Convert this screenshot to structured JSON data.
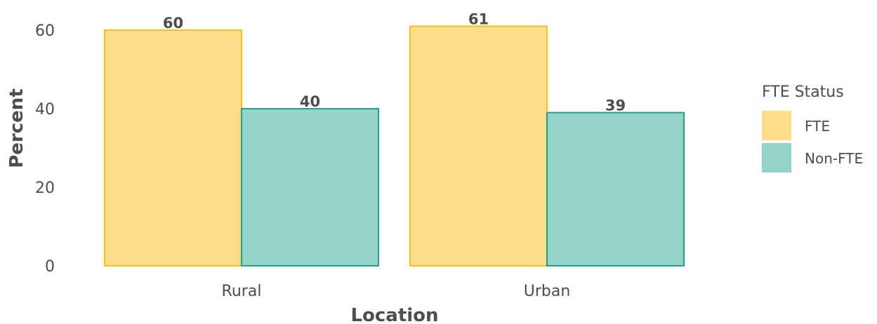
{
  "chart_data": {
    "type": "bar",
    "title": "",
    "xlabel": "Location",
    "ylabel": "Percent",
    "categories": [
      "Rural",
      "Urban"
    ],
    "series": [
      {
        "name": "FTE",
        "values": [
          60,
          61
        ],
        "fill": "#fcdd88",
        "stroke": "#f5c11c"
      },
      {
        "name": "Non-FTE",
        "values": [
          40,
          39
        ],
        "fill": "#95d2c8",
        "stroke": "#22a08c"
      }
    ],
    "ylim": [
      0,
      62
    ],
    "yticks": [
      "0",
      "20",
      "40",
      "60"
    ],
    "ytick_values": [
      0,
      20,
      40,
      60
    ],
    "legend": {
      "title": "FTE Status",
      "position": "right"
    },
    "grid": false
  }
}
